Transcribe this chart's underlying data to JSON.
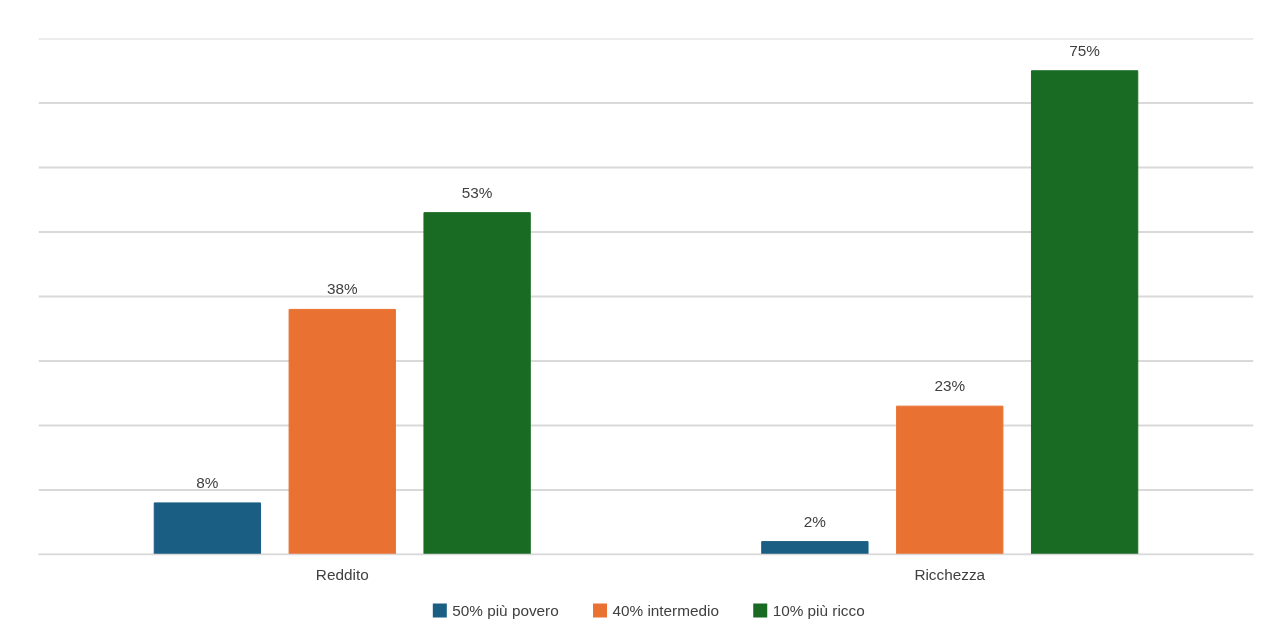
{
  "chart_data": {
    "type": "bar",
    "categories": [
      "Reddito",
      "Ricchezza"
    ],
    "series": [
      {
        "name": "50% più povero",
        "color": "#1a5e83",
        "values": [
          8,
          2
        ],
        "value_labels": [
          "8%",
          "2%"
        ]
      },
      {
        "name": "40% intermedio",
        "color": "#e97132",
        "values": [
          38,
          23
        ],
        "value_labels": [
          "38%",
          "23%"
        ]
      },
      {
        "name": "10% più ricco",
        "color": "#196b24",
        "values": [
          53,
          75
        ],
        "value_labels": [
          "53%",
          "75%"
        ]
      }
    ],
    "ylim": [
      0,
      80
    ],
    "yticks": [
      {
        "value": 0,
        "label": null
      },
      {
        "value": 10,
        "label": null
      },
      {
        "value": 20,
        "label": null
      },
      {
        "value": 30,
        "label": null
      },
      {
        "value": 40,
        "label": null
      },
      {
        "value": 50,
        "label": null
      },
      {
        "value": 60,
        "label": null
      },
      {
        "value": 70,
        "label": null
      },
      {
        "value": 80,
        "label": null
      }
    ],
    "tick_labels": "x",
    "grid": "y",
    "legend": "bottom"
  }
}
